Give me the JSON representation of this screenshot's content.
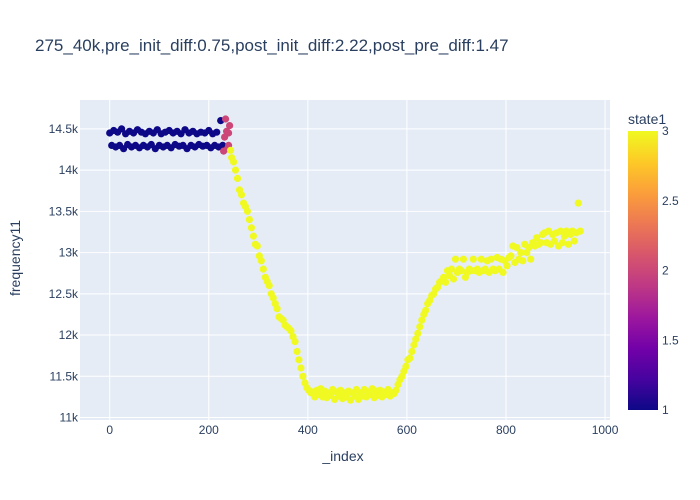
{
  "chart_data": {
    "type": "scatter",
    "title": "275_40k,pre_init_diff:0.75,post_init_diff:2.22,post_pre_diff:1.47",
    "xlabel": "_index",
    "ylabel": "frequency11",
    "xlim": [
      -60,
      1010
    ],
    "ylim": [
      10970,
      14850
    ],
    "x_ticks": [
      0,
      200,
      400,
      600,
      800,
      1000
    ],
    "y_ticks": [
      11000,
      11500,
      12000,
      12500,
      13000,
      13500,
      14000,
      14500
    ],
    "x_tick_labels": [
      "0",
      "200",
      "400",
      "600",
      "800",
      "1000"
    ],
    "y_tick_labels": [
      "11k",
      "11.5k",
      "12k",
      "12.5k",
      "13k",
      "13.5k",
      "14k",
      "14.5k"
    ],
    "grid": true,
    "colorbar": {
      "title": "state1",
      "range": [
        1,
        3
      ],
      "ticks": [
        1,
        1.5,
        2,
        2.5,
        3
      ],
      "tick_labels": [
        "1",
        "1.5",
        "2",
        "2.5",
        "3"
      ],
      "colors": [
        "#0d0887",
        "#46039f",
        "#7201a8",
        "#9c179e",
        "#bd3786",
        "#d8576b",
        "#ed7953",
        "#fb9f3a",
        "#fdca26",
        "#f0f921"
      ]
    },
    "series": [
      {
        "state": 1,
        "color": "#0d0887",
        "points": [
          [
            0,
            14450
          ],
          [
            4,
            14300
          ],
          [
            8,
            14480
          ],
          [
            12,
            14280
          ],
          [
            16,
            14460
          ],
          [
            20,
            14300
          ],
          [
            24,
            14500
          ],
          [
            28,
            14260
          ],
          [
            32,
            14440
          ],
          [
            36,
            14310
          ],
          [
            40,
            14470
          ],
          [
            44,
            14280
          ],
          [
            48,
            14450
          ],
          [
            52,
            14300
          ],
          [
            56,
            14490
          ],
          [
            60,
            14270
          ],
          [
            64,
            14460
          ],
          [
            68,
            14300
          ],
          [
            72,
            14440
          ],
          [
            76,
            14280
          ],
          [
            80,
            14470
          ],
          [
            84,
            14310
          ],
          [
            88,
            14450
          ],
          [
            92,
            14260
          ],
          [
            96,
            14490
          ],
          [
            100,
            14300
          ],
          [
            104,
            14440
          ],
          [
            108,
            14280
          ],
          [
            112,
            14460
          ],
          [
            116,
            14300
          ],
          [
            120,
            14480
          ],
          [
            124,
            14270
          ],
          [
            128,
            14450
          ],
          [
            132,
            14310
          ],
          [
            136,
            14470
          ],
          [
            140,
            14290
          ],
          [
            144,
            14440
          ],
          [
            148,
            14300
          ],
          [
            152,
            14490
          ],
          [
            156,
            14260
          ],
          [
            160,
            14450
          ],
          [
            164,
            14300
          ],
          [
            168,
            14470
          ],
          [
            172,
            14280
          ],
          [
            176,
            14440
          ],
          [
            180,
            14310
          ],
          [
            184,
            14460
          ],
          [
            188,
            14290
          ],
          [
            192,
            14450
          ],
          [
            196,
            14300
          ],
          [
            200,
            14480
          ],
          [
            204,
            14270
          ],
          [
            208,
            14440
          ],
          [
            212,
            14300
          ],
          [
            216,
            14460
          ],
          [
            220,
            14280
          ],
          [
            224,
            14600
          ],
          [
            228,
            14300
          ]
        ]
      },
      {
        "state": 2,
        "color": "#cc4778",
        "points": [
          [
            230,
            14230
          ],
          [
            232,
            14400
          ],
          [
            234,
            14620
          ],
          [
            236,
            14470
          ],
          [
            238,
            14260
          ],
          [
            240,
            14450
          ],
          [
            240,
            14300
          ],
          [
            242,
            14540
          ]
        ]
      },
      {
        "state": 3,
        "color": "#f0f921",
        "points": [
          [
            244,
            14240
          ],
          [
            246,
            14150
          ],
          [
            250,
            14100
          ],
          [
            254,
            14000
          ],
          [
            258,
            13900
          ],
          [
            262,
            13760
          ],
          [
            266,
            13700
          ],
          [
            270,
            13600
          ],
          [
            274,
            13560
          ],
          [
            278,
            13500
          ],
          [
            282,
            13400
          ],
          [
            286,
            13300
          ],
          [
            290,
            13200
          ],
          [
            294,
            13100
          ],
          [
            298,
            13080
          ],
          [
            302,
            12960
          ],
          [
            306,
            12900
          ],
          [
            310,
            12800
          ],
          [
            314,
            12700
          ],
          [
            318,
            12650
          ],
          [
            322,
            12600
          ],
          [
            326,
            12500
          ],
          [
            330,
            12450
          ],
          [
            334,
            12380
          ],
          [
            338,
            12320
          ],
          [
            342,
            12220
          ],
          [
            346,
            12200
          ],
          [
            350,
            12180
          ],
          [
            354,
            12120
          ],
          [
            358,
            12100
          ],
          [
            362,
            12080
          ],
          [
            366,
            12050
          ],
          [
            370,
            11980
          ],
          [
            374,
            11920
          ],
          [
            378,
            11800
          ],
          [
            382,
            11700
          ],
          [
            386,
            11600
          ],
          [
            390,
            11500
          ],
          [
            394,
            11420
          ],
          [
            398,
            11360
          ],
          [
            402,
            11330
          ],
          [
            406,
            11300
          ],
          [
            410,
            11310
          ],
          [
            414,
            11250
          ],
          [
            418,
            11330
          ],
          [
            422,
            11280
          ],
          [
            426,
            11350
          ],
          [
            430,
            11250
          ],
          [
            434,
            11320
          ],
          [
            438,
            11240
          ],
          [
            442,
            11300
          ],
          [
            446,
            11270
          ],
          [
            450,
            11340
          ],
          [
            454,
            11220
          ],
          [
            458,
            11310
          ],
          [
            462,
            11260
          ],
          [
            466,
            11330
          ],
          [
            470,
            11230
          ],
          [
            474,
            11300
          ],
          [
            478,
            11250
          ],
          [
            482,
            11320
          ],
          [
            486,
            11210
          ],
          [
            490,
            11300
          ],
          [
            494,
            11260
          ],
          [
            498,
            11340
          ],
          [
            502,
            11220
          ],
          [
            506,
            11300
          ],
          [
            510,
            11260
          ],
          [
            514,
            11340
          ],
          [
            518,
            11250
          ],
          [
            522,
            11310
          ],
          [
            526,
            11280
          ],
          [
            530,
            11350
          ],
          [
            534,
            11240
          ],
          [
            538,
            11320
          ],
          [
            542,
            11270
          ],
          [
            546,
            11330
          ],
          [
            550,
            11250
          ],
          [
            554,
            11310
          ],
          [
            558,
            11280
          ],
          [
            562,
            11340
          ],
          [
            566,
            11260
          ],
          [
            570,
            11300
          ],
          [
            574,
            11290
          ],
          [
            578,
            11330
          ],
          [
            582,
            11400
          ],
          [
            586,
            11460
          ],
          [
            590,
            11500
          ],
          [
            594,
            11560
          ],
          [
            598,
            11620
          ],
          [
            602,
            11700
          ],
          [
            606,
            11720
          ],
          [
            610,
            11800
          ],
          [
            614,
            11880
          ],
          [
            618,
            11950
          ],
          [
            622,
            12020
          ],
          [
            626,
            12100
          ],
          [
            630,
            12180
          ],
          [
            634,
            12250
          ],
          [
            638,
            12300
          ],
          [
            642,
            12380
          ],
          [
            646,
            12420
          ],
          [
            650,
            12480
          ],
          [
            654,
            12500
          ],
          [
            658,
            12560
          ],
          [
            662,
            12580
          ],
          [
            666,
            12640
          ],
          [
            670,
            12660
          ],
          [
            674,
            12700
          ],
          [
            678,
            12640
          ],
          [
            682,
            12780
          ],
          [
            686,
            12720
          ],
          [
            690,
            12800
          ],
          [
            694,
            12680
          ],
          [
            698,
            12920
          ],
          [
            702,
            12760
          ],
          [
            706,
            12800
          ],
          [
            710,
            12780
          ],
          [
            714,
            12920
          ],
          [
            718,
            12700
          ],
          [
            722,
            12760
          ],
          [
            726,
            12800
          ],
          [
            730,
            12780
          ],
          [
            734,
            12920
          ],
          [
            738,
            12780
          ],
          [
            742,
            12800
          ],
          [
            746,
            12760
          ],
          [
            750,
            12920
          ],
          [
            754,
            12780
          ],
          [
            758,
            12800
          ],
          [
            762,
            12900
          ],
          [
            766,
            12760
          ],
          [
            770,
            12920
          ],
          [
            774,
            12800
          ],
          [
            778,
            12780
          ],
          [
            782,
            12940
          ],
          [
            786,
            12800
          ],
          [
            790,
            12920
          ],
          [
            794,
            12760
          ],
          [
            798,
            12900
          ],
          [
            802,
            12840
          ],
          [
            806,
            12940
          ],
          [
            810,
            12960
          ],
          [
            814,
            13080
          ],
          [
            818,
            12880
          ],
          [
            822,
            13060
          ],
          [
            826,
            12920
          ],
          [
            830,
            13000
          ],
          [
            834,
            12900
          ],
          [
            838,
            13100
          ],
          [
            842,
            13000
          ],
          [
            846,
            13060
          ],
          [
            850,
            12920
          ],
          [
            854,
            13120
          ],
          [
            858,
            13080
          ],
          [
            862,
            13180
          ],
          [
            866,
            13100
          ],
          [
            870,
            13120
          ],
          [
            874,
            13220
          ],
          [
            878,
            13240
          ],
          [
            882,
            13120
          ],
          [
            886,
            13260
          ],
          [
            890,
            13100
          ],
          [
            894,
            13220
          ],
          [
            898,
            13140
          ],
          [
            902,
            13240
          ],
          [
            906,
            13080
          ],
          [
            910,
            13260
          ],
          [
            914,
            13120
          ],
          [
            918,
            13200
          ],
          [
            922,
            13260
          ],
          [
            926,
            13100
          ],
          [
            930,
            13220
          ],
          [
            934,
            13260
          ],
          [
            938,
            13140
          ],
          [
            942,
            13240
          ],
          [
            946,
            13600
          ],
          [
            950,
            13260
          ]
        ]
      }
    ]
  }
}
